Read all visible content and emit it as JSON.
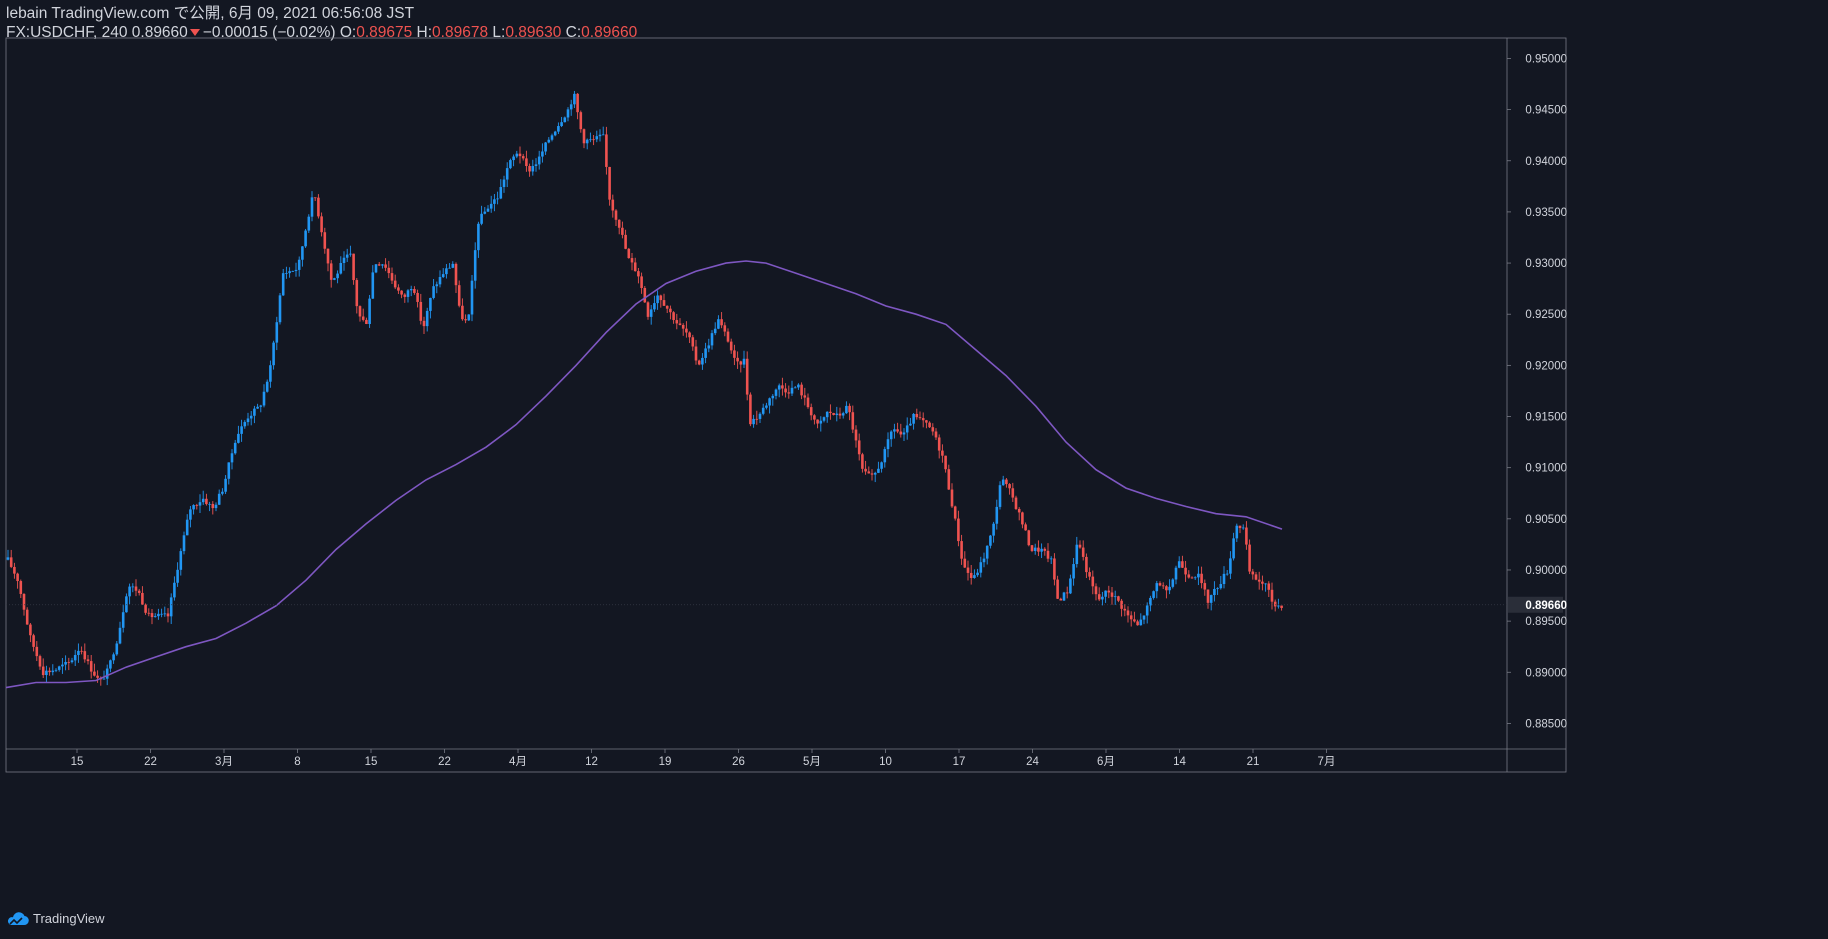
{
  "header": {
    "publish_line": "lebain TradingView.com で公開, 6月 09, 2021 06:56:08 JST",
    "symbol": "FX:USDCHF, 240",
    "last": "0.89660",
    "change": "−0.00015 (−0.02%)",
    "o_label": "O:",
    "o_value": "0.89675",
    "h_label": "H:",
    "h_value": "0.89678",
    "l_label": "L:",
    "l_value": "0.89630",
    "c_label": "C:",
    "c_value": "0.89660"
  },
  "footer": {
    "brand": "TradingView",
    "logo_icon": "tradingview-cloud-icon"
  },
  "colors": {
    "background": "#131722",
    "up": "#2196f3",
    "down": "#ef5350",
    "ma": "#7e57c2",
    "text": "#d1d4dc",
    "frame": "#787b86"
  },
  "chart_data": {
    "type": "candlestick",
    "symbol": "FX:USDCHF",
    "interval": "240",
    "ylim": [
      0.8825,
      0.952
    ],
    "y_ticks": [
      "0.95000",
      "0.94500",
      "0.94000",
      "0.93500",
      "0.93000",
      "0.92500",
      "0.92000",
      "0.91500",
      "0.91000",
      "0.90500",
      "0.90000",
      "0.89500",
      "0.89000",
      "0.88500"
    ],
    "x_ticks": [
      "15",
      "22",
      "3月",
      "8",
      "15",
      "22",
      "4月",
      "12",
      "19",
      "26",
      "5月",
      "10",
      "17",
      "24",
      "6月",
      "14",
      "21",
      "7月"
    ],
    "last_price_label": "0.89660",
    "close_path": [
      [
        0,
        0.901
      ],
      [
        10,
        0.899
      ],
      [
        22,
        0.8935
      ],
      [
        35,
        0.89
      ],
      [
        48,
        0.8903
      ],
      [
        62,
        0.891
      ],
      [
        72,
        0.8925
      ],
      [
        82,
        0.8905
      ],
      [
        92,
        0.889
      ],
      [
        100,
        0.8902
      ],
      [
        110,
        0.8935
      ],
      [
        120,
        0.8985
      ],
      [
        130,
        0.898
      ],
      [
        140,
        0.8955
      ],
      [
        150,
        0.8955
      ],
      [
        160,
        0.8955
      ],
      [
        170,
        0.9005
      ],
      [
        182,
        0.906
      ],
      [
        195,
        0.907
      ],
      [
        205,
        0.906
      ],
      [
        215,
        0.908
      ],
      [
        228,
        0.913
      ],
      [
        240,
        0.915
      ],
      [
        252,
        0.916
      ],
      [
        262,
        0.9195
      ],
      [
        275,
        0.929
      ],
      [
        290,
        0.9295
      ],
      [
        300,
        0.9345
      ],
      [
        306,
        0.937
      ],
      [
        314,
        0.933
      ],
      [
        324,
        0.928
      ],
      [
        334,
        0.93
      ],
      [
        342,
        0.931
      ],
      [
        350,
        0.925
      ],
      [
        358,
        0.924
      ],
      [
        366,
        0.93
      ],
      [
        376,
        0.93
      ],
      [
        386,
        0.928
      ],
      [
        395,
        0.9265
      ],
      [
        405,
        0.928
      ],
      [
        415,
        0.9235
      ],
      [
        425,
        0.9275
      ],
      [
        435,
        0.929
      ],
      [
        445,
        0.93
      ],
      [
        452,
        0.925
      ],
      [
        460,
        0.924
      ],
      [
        470,
        0.934
      ],
      [
        480,
        0.9355
      ],
      [
        490,
        0.9365
      ],
      [
        500,
        0.9395
      ],
      [
        510,
        0.941
      ],
      [
        520,
        0.939
      ],
      [
        530,
        0.94
      ],
      [
        540,
        0.942
      ],
      [
        550,
        0.9435
      ],
      [
        560,
        0.945
      ],
      [
        566,
        0.9465
      ],
      [
        575,
        0.942
      ],
      [
        585,
        0.942
      ],
      [
        595,
        0.9425
      ],
      [
        602,
        0.936
      ],
      [
        612,
        0.9335
      ],
      [
        620,
        0.9305
      ],
      [
        630,
        0.929
      ],
      [
        640,
        0.925
      ],
      [
        650,
        0.927
      ],
      [
        660,
        0.9255
      ],
      [
        670,
        0.924
      ],
      [
        680,
        0.923
      ],
      [
        690,
        0.92
      ],
      [
        700,
        0.922
      ],
      [
        710,
        0.9245
      ],
      [
        720,
        0.9225
      ],
      [
        728,
        0.92
      ],
      [
        736,
        0.9205
      ],
      [
        742,
        0.9145
      ],
      [
        750,
        0.915
      ],
      [
        760,
        0.9165
      ],
      [
        770,
        0.918
      ],
      [
        780,
        0.9175
      ],
      [
        790,
        0.918
      ],
      [
        800,
        0.916
      ],
      [
        810,
        0.914
      ],
      [
        820,
        0.9155
      ],
      [
        830,
        0.915
      ],
      [
        840,
        0.916
      ],
      [
        848,
        0.9125
      ],
      [
        855,
        0.9095
      ],
      [
        865,
        0.909
      ],
      [
        875,
        0.911
      ],
      [
        885,
        0.914
      ],
      [
        895,
        0.913
      ],
      [
        905,
        0.915
      ],
      [
        915,
        0.9145
      ],
      [
        925,
        0.9135
      ],
      [
        935,
        0.911
      ],
      [
        945,
        0.906
      ],
      [
        955,
        0.9005
      ],
      [
        965,
        0.899
      ],
      [
        975,
        0.901
      ],
      [
        985,
        0.904
      ],
      [
        993,
        0.909
      ],
      [
        1003,
        0.9075
      ],
      [
        1013,
        0.905
      ],
      [
        1023,
        0.902
      ],
      [
        1033,
        0.902
      ],
      [
        1043,
        0.901
      ],
      [
        1050,
        0.897
      ],
      [
        1060,
        0.898
      ],
      [
        1070,
        0.903
      ],
      [
        1080,
        0.8995
      ],
      [
        1090,
        0.897
      ],
      [
        1100,
        0.898
      ],
      [
        1110,
        0.897
      ],
      [
        1120,
        0.8955
      ],
      [
        1130,
        0.8945
      ],
      [
        1140,
        0.8965
      ],
      [
        1150,
        0.899
      ],
      [
        1160,
        0.8975
      ],
      [
        1170,
        0.901
      ],
      [
        1180,
        0.8995
      ],
      [
        1190,
        0.8995
      ],
      [
        1200,
        0.897
      ],
      [
        1210,
        0.8985
      ],
      [
        1220,
        0.9
      ],
      [
        1228,
        0.9045
      ],
      [
        1236,
        0.904
      ],
      [
        1242,
        0.8995
      ],
      [
        1250,
        0.899
      ],
      [
        1258,
        0.8985
      ],
      [
        1266,
        0.8965
      ],
      [
        1276,
        0.8966
      ]
    ],
    "moving_average_path": [
      [
        0,
        0.8885
      ],
      [
        30,
        0.889
      ],
      [
        60,
        0.889
      ],
      [
        90,
        0.8892
      ],
      [
        120,
        0.8905
      ],
      [
        150,
        0.8915
      ],
      [
        180,
        0.8925
      ],
      [
        210,
        0.8933
      ],
      [
        240,
        0.8948
      ],
      [
        270,
        0.8965
      ],
      [
        300,
        0.899
      ],
      [
        330,
        0.902
      ],
      [
        360,
        0.9045
      ],
      [
        390,
        0.9068
      ],
      [
        420,
        0.9088
      ],
      [
        450,
        0.9103
      ],
      [
        480,
        0.912
      ],
      [
        510,
        0.9142
      ],
      [
        540,
        0.917
      ],
      [
        570,
        0.92
      ],
      [
        600,
        0.9232
      ],
      [
        630,
        0.926
      ],
      [
        660,
        0.928
      ],
      [
        690,
        0.9292
      ],
      [
        720,
        0.93
      ],
      [
        740,
        0.9302
      ],
      [
        760,
        0.93
      ],
      [
        790,
        0.929
      ],
      [
        820,
        0.928
      ],
      [
        850,
        0.927
      ],
      [
        880,
        0.9258
      ],
      [
        910,
        0.925
      ],
      [
        940,
        0.924
      ],
      [
        970,
        0.9215
      ],
      [
        1000,
        0.919
      ],
      [
        1030,
        0.916
      ],
      [
        1060,
        0.9125
      ],
      [
        1090,
        0.9098
      ],
      [
        1120,
        0.908
      ],
      [
        1150,
        0.907
      ],
      [
        1180,
        0.9062
      ],
      [
        1210,
        0.9055
      ],
      [
        1240,
        0.9052
      ],
      [
        1276,
        0.904
      ]
    ]
  }
}
